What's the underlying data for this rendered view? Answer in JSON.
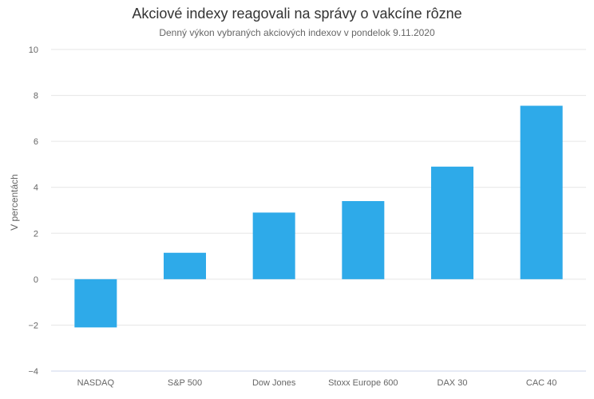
{
  "chart_data": {
    "type": "bar",
    "title": "Akciové indexy reagovali na správy o vakcíne rôzne",
    "subtitle": "Denný výkon vybraných akciových indexov v pondelok 9.11.2020",
    "ylabel": "V percentách",
    "xlabel": "",
    "ylim": [
      -4,
      10
    ],
    "yticks": [
      10,
      8,
      6,
      4,
      2,
      0,
      -2,
      -4
    ],
    "ytick_labels": [
      "10",
      "8",
      "6",
      "4",
      "2",
      "0",
      "−2",
      "−4"
    ],
    "grid": true,
    "categories": [
      "NASDAQ",
      "S&P 500",
      "Dow Jones",
      "Stoxx Europe 600",
      "DAX 30",
      "CAC 40"
    ],
    "values": [
      -2.1,
      1.15,
      2.9,
      3.4,
      4.9,
      7.55
    ],
    "bar_color": "#2EAAE9"
  }
}
